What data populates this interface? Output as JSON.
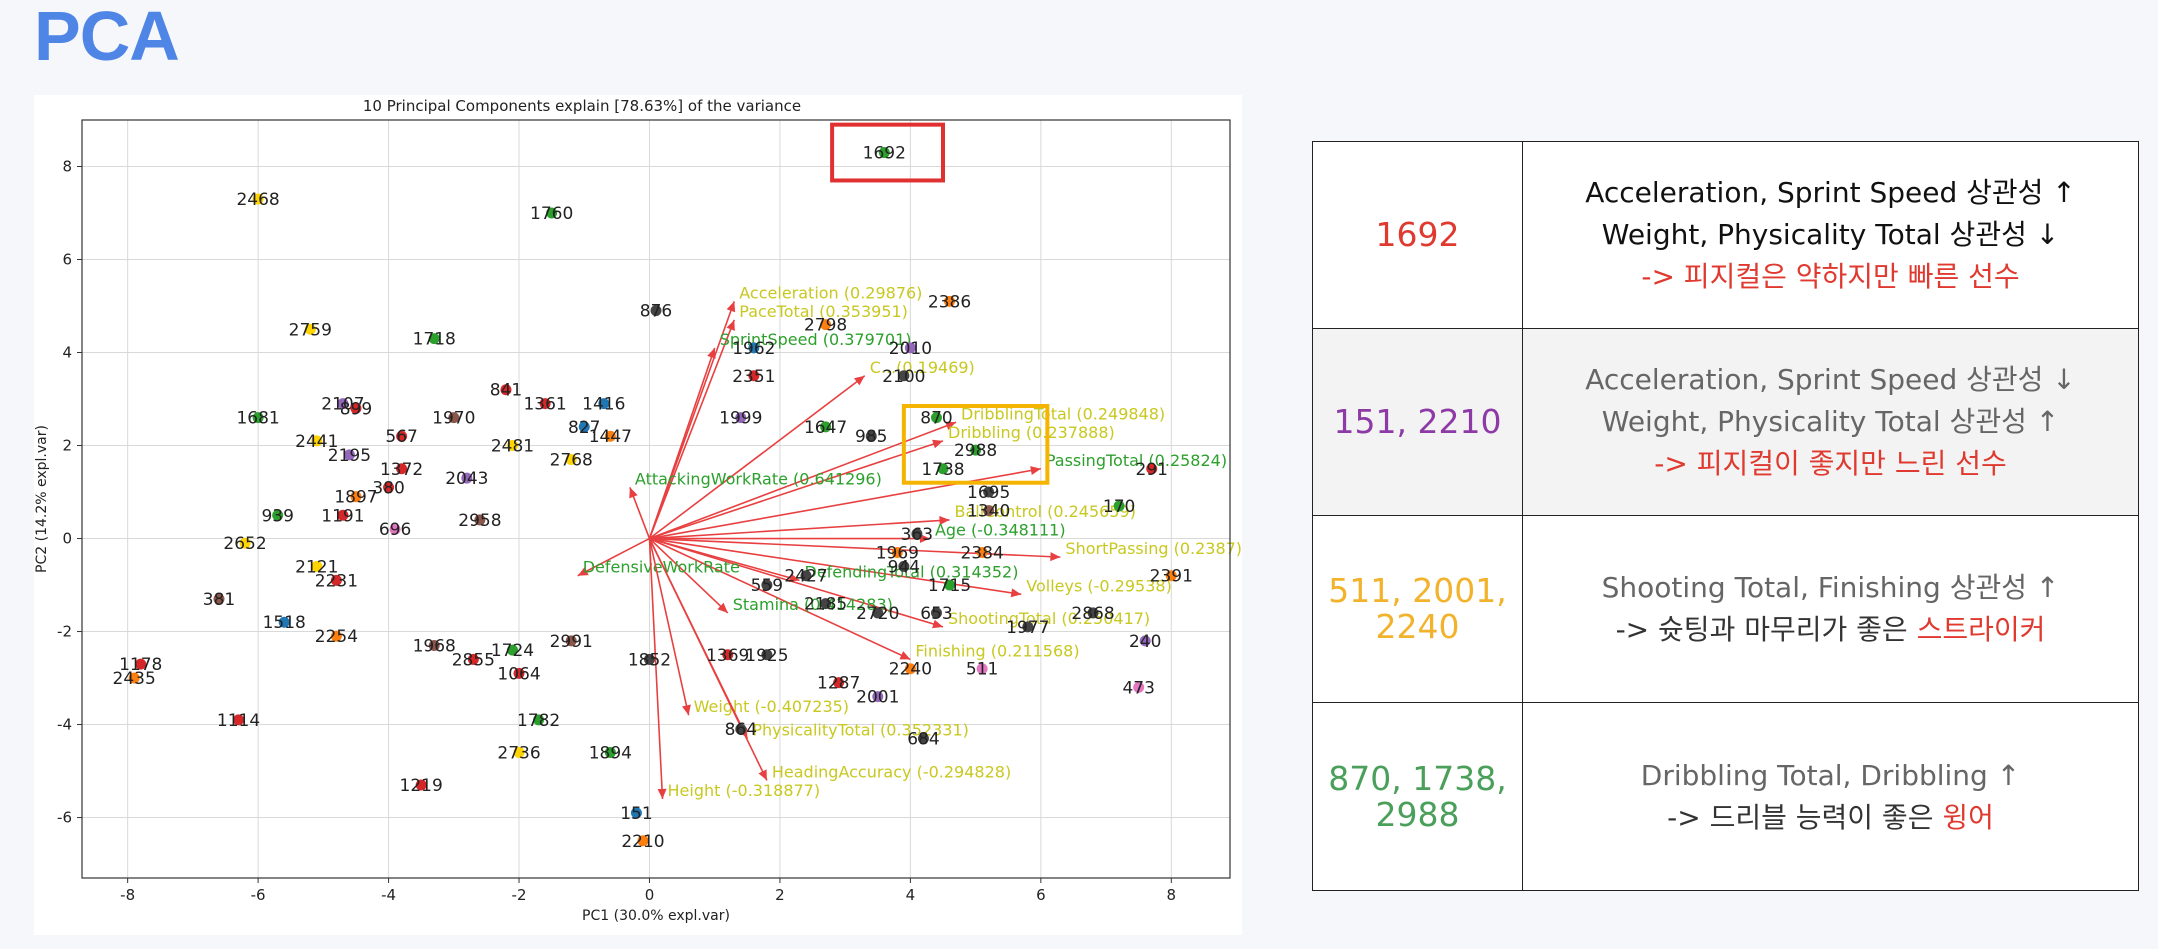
{
  "page_title": "PCA",
  "chart_data": {
    "type": "scatter",
    "title": "10 Principal Components explain [78.63%] of the variance",
    "xlabel": "PC1 (30.0% expl.var)",
    "ylabel": "PC2 (14.2% expl.var)",
    "xlim": [
      -8.7,
      8.9
    ],
    "ylim": [
      -7.3,
      9.0
    ],
    "xticks": [
      -8,
      -6,
      -4,
      -2,
      0,
      2,
      4,
      6,
      8
    ],
    "yticks": [
      -6,
      -4,
      -2,
      0,
      2,
      4,
      6,
      8
    ],
    "grid": true,
    "arrow_origin": [
      0,
      0
    ],
    "points": [
      {
        "id": "1692",
        "x": 3.6,
        "y": 8.3,
        "color": "#2ca02c"
      },
      {
        "id": "2468",
        "x": -6.0,
        "y": 7.3,
        "color": "#ffd400"
      },
      {
        "id": "1760",
        "x": -1.5,
        "y": 7.0,
        "color": "#2ca02c"
      },
      {
        "id": "876",
        "x": 0.1,
        "y": 4.9,
        "color": "#444444"
      },
      {
        "id": "2386",
        "x": 4.6,
        "y": 5.1,
        "color": "#ff7f0e"
      },
      {
        "id": "2798",
        "x": 2.7,
        "y": 4.6,
        "color": "#ff7f0e"
      },
      {
        "id": "2759",
        "x": -5.2,
        "y": 4.5,
        "color": "#ffd400"
      },
      {
        "id": "1718",
        "x": -3.3,
        "y": 4.3,
        "color": "#2ca02c"
      },
      {
        "id": "1962",
        "x": 1.6,
        "y": 4.1,
        "color": "#1f77b4"
      },
      {
        "id": "2010",
        "x": 4.0,
        "y": 4.1,
        "color": "#9467bd"
      },
      {
        "id": "2351",
        "x": 1.6,
        "y": 3.5,
        "color": "#d62728"
      },
      {
        "id": "2100",
        "x": 3.9,
        "y": 3.5,
        "color": "#444444"
      },
      {
        "id": "841",
        "x": -2.2,
        "y": 3.2,
        "color": "#d62728"
      },
      {
        "id": "2107",
        "x": -4.7,
        "y": 2.9,
        "color": "#9467bd"
      },
      {
        "id": "899",
        "x": -4.5,
        "y": 2.8,
        "color": "#d62728"
      },
      {
        "id": "1361",
        "x": -1.6,
        "y": 2.9,
        "color": "#d62728"
      },
      {
        "id": "1416",
        "x": -0.7,
        "y": 2.9,
        "color": "#1f77b4"
      },
      {
        "id": "1681",
        "x": -6.0,
        "y": 2.6,
        "color": "#2ca02c"
      },
      {
        "id": "1970",
        "x": -3.0,
        "y": 2.6,
        "color": "#8c564b"
      },
      {
        "id": "567",
        "x": -3.8,
        "y": 2.2,
        "color": "#d62728"
      },
      {
        "id": "827",
        "x": -1.0,
        "y": 2.4,
        "color": "#1f77b4"
      },
      {
        "id": "1447",
        "x": -0.6,
        "y": 2.2,
        "color": "#ff7f0e"
      },
      {
        "id": "2441",
        "x": -5.1,
        "y": 2.1,
        "color": "#ffd400"
      },
      {
        "id": "1999",
        "x": 1.4,
        "y": 2.6,
        "color": "#9467bd"
      },
      {
        "id": "2481",
        "x": -2.1,
        "y": 2.0,
        "color": "#ffd400"
      },
      {
        "id": "1647",
        "x": 2.7,
        "y": 2.4,
        "color": "#2ca02c"
      },
      {
        "id": "985",
        "x": 3.4,
        "y": 2.2,
        "color": "#444444"
      },
      {
        "id": "870",
        "x": 4.4,
        "y": 2.6,
        "color": "#2ca02c"
      },
      {
        "id": "2988",
        "x": 5.0,
        "y": 1.9,
        "color": "#2ca02c"
      },
      {
        "id": "1738",
        "x": 4.5,
        "y": 1.5,
        "color": "#2ca02c"
      },
      {
        "id": "2768",
        "x": -1.2,
        "y": 1.7,
        "color": "#ffd400"
      },
      {
        "id": "1372",
        "x": -3.8,
        "y": 1.5,
        "color": "#d62728"
      },
      {
        "id": "2043",
        "x": -2.8,
        "y": 1.3,
        "color": "#9467bd"
      },
      {
        "id": "2195",
        "x": -4.6,
        "y": 1.8,
        "color": "#9467bd"
      },
      {
        "id": "291",
        "x": 7.7,
        "y": 1.5,
        "color": "#d62728"
      },
      {
        "id": "1897",
        "x": -4.5,
        "y": 0.9,
        "color": "#ff7f0e"
      },
      {
        "id": "380",
        "x": -4.0,
        "y": 1.1,
        "color": "#d62728"
      },
      {
        "id": "1695",
        "x": 5.2,
        "y": 1.0,
        "color": "#444444"
      },
      {
        "id": "170",
        "x": 7.2,
        "y": 0.7,
        "color": "#2ca02c"
      },
      {
        "id": "939",
        "x": -5.7,
        "y": 0.5,
        "color": "#2ca02c"
      },
      {
        "id": "1191",
        "x": -4.7,
        "y": 0.5,
        "color": "#d62728"
      },
      {
        "id": "696",
        "x": -3.9,
        "y": 0.2,
        "color": "#e377c2"
      },
      {
        "id": "2958",
        "x": -2.6,
        "y": 0.4,
        "color": "#8c564b"
      },
      {
        "id": "1340",
        "x": 5.2,
        "y": 0.6,
        "color": "#8c564b"
      },
      {
        "id": "2652",
        "x": -6.2,
        "y": -0.1,
        "color": "#ffd400"
      },
      {
        "id": "363",
        "x": 4.1,
        "y": 0.1,
        "color": "#444444"
      },
      {
        "id": "1969",
        "x": 3.8,
        "y": -0.3,
        "color": "#ff7f0e"
      },
      {
        "id": "2384",
        "x": 5.1,
        "y": -0.3,
        "color": "#ff7f0e"
      },
      {
        "id": "2391",
        "x": 8.0,
        "y": -0.8,
        "color": "#ff7f0e"
      },
      {
        "id": "944",
        "x": 3.9,
        "y": -0.6,
        "color": "#444444"
      },
      {
        "id": "2121",
        "x": -5.1,
        "y": -0.6,
        "color": "#ffd400"
      },
      {
        "id": "2231",
        "x": -4.8,
        "y": -0.9,
        "color": "#d62728"
      },
      {
        "id": "381",
        "x": -6.6,
        "y": -1.3,
        "color": "#8c564b"
      },
      {
        "id": "2427",
        "x": 2.4,
        "y": -0.8,
        "color": "#444444"
      },
      {
        "id": "1715",
        "x": 4.6,
        "y": -1.0,
        "color": "#2ca02c"
      },
      {
        "id": "559",
        "x": 1.8,
        "y": -1.0,
        "color": "#444444"
      },
      {
        "id": "2185",
        "x": 2.7,
        "y": -1.4,
        "color": "#444444"
      },
      {
        "id": "2720",
        "x": 3.5,
        "y": -1.6,
        "color": "#444444"
      },
      {
        "id": "653",
        "x": 4.4,
        "y": -1.6,
        "color": "#444444"
      },
      {
        "id": "1977",
        "x": 5.8,
        "y": -1.9,
        "color": "#444444"
      },
      {
        "id": "2868",
        "x": 6.8,
        "y": -1.6,
        "color": "#444444"
      },
      {
        "id": "240",
        "x": 7.6,
        "y": -2.2,
        "color": "#9467bd"
      },
      {
        "id": "1518",
        "x": -5.6,
        "y": -1.8,
        "color": "#1f77b4"
      },
      {
        "id": "2254",
        "x": -4.8,
        "y": -2.1,
        "color": "#ff7f0e"
      },
      {
        "id": "1968",
        "x": -3.3,
        "y": -2.3,
        "color": "#8c564b"
      },
      {
        "id": "2855",
        "x": -2.7,
        "y": -2.6,
        "color": "#d62728"
      },
      {
        "id": "1724",
        "x": -2.1,
        "y": -2.4,
        "color": "#2ca02c"
      },
      {
        "id": "2991",
        "x": -1.2,
        "y": -2.2,
        "color": "#8c564b"
      },
      {
        "id": "1852",
        "x": 0.0,
        "y": -2.6,
        "color": "#444444"
      },
      {
        "id": "1064",
        "x": -2.0,
        "y": -2.9,
        "color": "#d62728"
      },
      {
        "id": "1369",
        "x": 1.2,
        "y": -2.5,
        "color": "#d62728"
      },
      {
        "id": "1925",
        "x": 1.8,
        "y": -2.5,
        "color": "#444444"
      },
      {
        "id": "2240",
        "x": 4.0,
        "y": -2.8,
        "color": "#ff7f0e"
      },
      {
        "id": "511",
        "x": 5.1,
        "y": -2.8,
        "color": "#e377c2"
      },
      {
        "id": "2001",
        "x": 3.5,
        "y": -3.4,
        "color": "#9467bd"
      },
      {
        "id": "1287",
        "x": 2.9,
        "y": -3.1,
        "color": "#d62728"
      },
      {
        "id": "473",
        "x": 7.5,
        "y": -3.2,
        "color": "#e377c2"
      },
      {
        "id": "1178",
        "x": -7.8,
        "y": -2.7,
        "color": "#d62728"
      },
      {
        "id": "2435",
        "x": -7.9,
        "y": -3.0,
        "color": "#ff7f0e"
      },
      {
        "id": "1114",
        "x": -6.3,
        "y": -3.9,
        "color": "#d62728"
      },
      {
        "id": "1782",
        "x": -1.7,
        "y": -3.9,
        "color": "#2ca02c"
      },
      {
        "id": "864",
        "x": 1.4,
        "y": -4.1,
        "color": "#444444"
      },
      {
        "id": "684",
        "x": 4.2,
        "y": -4.3,
        "color": "#444444"
      },
      {
        "id": "2736",
        "x": -2.0,
        "y": -4.6,
        "color": "#ffd400"
      },
      {
        "id": "1894",
        "x": -0.6,
        "y": -4.6,
        "color": "#2ca02c"
      },
      {
        "id": "1219",
        "x": -3.5,
        "y": -5.3,
        "color": "#d62728"
      },
      {
        "id": "151",
        "x": -0.2,
        "y": -5.9,
        "color": "#1f77b4"
      },
      {
        "id": "2210",
        "x": -0.1,
        "y": -6.5,
        "color": "#ff7f0e"
      }
    ],
    "loadings": [
      {
        "label": "Acceleration (0.29876)",
        "x": 1.3,
        "y": 5.1,
        "color": "#c8c820"
      },
      {
        "label": "PaceTotal (0.353951)",
        "x": 1.3,
        "y": 4.7,
        "color": "#c8c820"
      },
      {
        "label": "SprintSpeed (0.379701)",
        "x": 1.0,
        "y": 4.1,
        "color": "#2ca02c"
      },
      {
        "label": "C...(0.19469)",
        "x": 3.3,
        "y": 3.5,
        "color": "#c8c820"
      },
      {
        "label": "DribblingTotal (0.249848)",
        "x": 4.7,
        "y": 2.5,
        "color": "#c8c820"
      },
      {
        "label": "Dribbling (0.237888)",
        "x": 4.5,
        "y": 2.1,
        "color": "#c8c820"
      },
      {
        "label": "PassingTotal (0.25824)",
        "x": 6.0,
        "y": 1.5,
        "color": "#2ca02c"
      },
      {
        "label": "BallControl (0.245659)",
        "x": 4.6,
        "y": 0.4,
        "color": "#c8c820"
      },
      {
        "label": "Age (-0.348111)",
        "x": 4.3,
        "y": 0.0,
        "color": "#2ca02c"
      },
      {
        "label": "ShortPassing (0.2387)",
        "x": 6.3,
        "y": -0.4,
        "color": "#c8c820"
      },
      {
        "label": "Volleys (-0.29538)",
        "x": 5.7,
        "y": -1.2,
        "color": "#c8c820"
      },
      {
        "label": "ShootingTotal (0.250417)",
        "x": 4.5,
        "y": -1.9,
        "color": "#c8c820"
      },
      {
        "label": "Finishing (0.211568)",
        "x": 4.0,
        "y": -2.6,
        "color": "#c8c820"
      },
      {
        "label": "DefendingTotal (0.314352)",
        "x": 2.3,
        "y": -0.9,
        "color": "#2ca02c"
      },
      {
        "label": "Stamina (0.414283)",
        "x": 1.2,
        "y": -1.6,
        "color": "#2ca02c"
      },
      {
        "label": "AttackingWorkRate (0.641296)",
        "x": -0.3,
        "y": 1.1,
        "color": "#2ca02c"
      },
      {
        "label": "DefensiveWorkRate",
        "x": -1.1,
        "y": -0.8,
        "color": "#2ca02c"
      },
      {
        "label": "Weight (-0.407235)",
        "x": 0.6,
        "y": -3.8,
        "color": "#c8c820"
      },
      {
        "label": "PhysicalityTotal (0.352331)",
        "x": 1.5,
        "y": -4.3,
        "color": "#c8c820"
      },
      {
        "label": "HeadingAccuracy (-0.294828)",
        "x": 1.8,
        "y": -5.2,
        "color": "#c8c820"
      },
      {
        "label": "Height (-0.318877)",
        "x": 0.2,
        "y": -5.6,
        "color": "#c8c820"
      }
    ],
    "highlight_boxes": [
      {
        "ids": [
          "1692"
        ],
        "x0": 2.8,
        "x1": 4.5,
        "y0": 7.7,
        "y1": 8.9,
        "color": "#e03030"
      },
      {
        "ids": [
          "870",
          "1738",
          "2988"
        ],
        "x0": 3.9,
        "x1": 6.1,
        "y0": 1.2,
        "y1": 2.85,
        "color": "#f5b400"
      },
      {
        "ids": [
          "2240",
          "2001",
          "511"
        ],
        "x0": 3.2,
        "x1": 5.1,
        "y0": -2.4,
        "y1": -3.75,
        "color": "#5a9a3a"
      },
      {
        "ids": [
          "151",
          "2210"
        ],
        "x0": -0.8,
        "x1": 0.55,
        "y0": -5.5,
        "y1": -6.95,
        "color": "#6a2fa0"
      }
    ]
  },
  "summary_table": {
    "rows": [
      {
        "ids": "1692",
        "ids_color": "#e0392f",
        "shaded": false,
        "lines": [
          {
            "parts": [
              {
                "text": "Acceleration, Sprint Speed 상관성 ↑",
                "color": "#111111"
              }
            ]
          },
          {
            "parts": [
              {
                "text": "Weight, Physicality Total 상관성 ↓",
                "color": "#111111"
              }
            ]
          },
          {
            "parts": [
              {
                "text": "-> 피지컬은 약하지만 빠른 선수",
                "color": "#e0392f"
              }
            ]
          }
        ]
      },
      {
        "ids": "151, 2210",
        "ids_color": "#8e3aa6",
        "shaded": true,
        "lines": [
          {
            "parts": [
              {
                "text": "Acceleration, Sprint Speed 상관성 ↓",
                "color": "#666666"
              }
            ]
          },
          {
            "parts": [
              {
                "text": "Weight, Physicality Total 상관성 ↑",
                "color": "#666666"
              }
            ]
          },
          {
            "parts": [
              {
                "text": "-> 피지컬이 좋지만 느린 선수",
                "color": "#e0392f"
              }
            ]
          }
        ]
      },
      {
        "ids": "511, 2001, 2240",
        "ids_color": "#f2b22c",
        "shaded": false,
        "lines": [
          {
            "parts": [
              {
                "text": "Shooting Total, Finishing 상관성 ↑",
                "color": "#666666"
              }
            ]
          },
          {
            "parts": [
              {
                "text": "-> 슛팅과 마무리가 좋은 ",
                "color": "#333333"
              },
              {
                "text": "스트라이커",
                "color": "#e0392f"
              }
            ]
          }
        ]
      },
      {
        "ids": "870, 1738, 2988",
        "ids_color": "#4aa05a",
        "shaded": false,
        "lines": [
          {
            "parts": [
              {
                "text": "Dribbling Total, Dribbling ↑",
                "color": "#666666"
              }
            ]
          },
          {
            "parts": [
              {
                "text": "-> 드리블 능력이 좋은 ",
                "color": "#333333"
              },
              {
                "text": "윙어",
                "color": "#e0392f"
              }
            ]
          }
        ]
      }
    ]
  }
}
